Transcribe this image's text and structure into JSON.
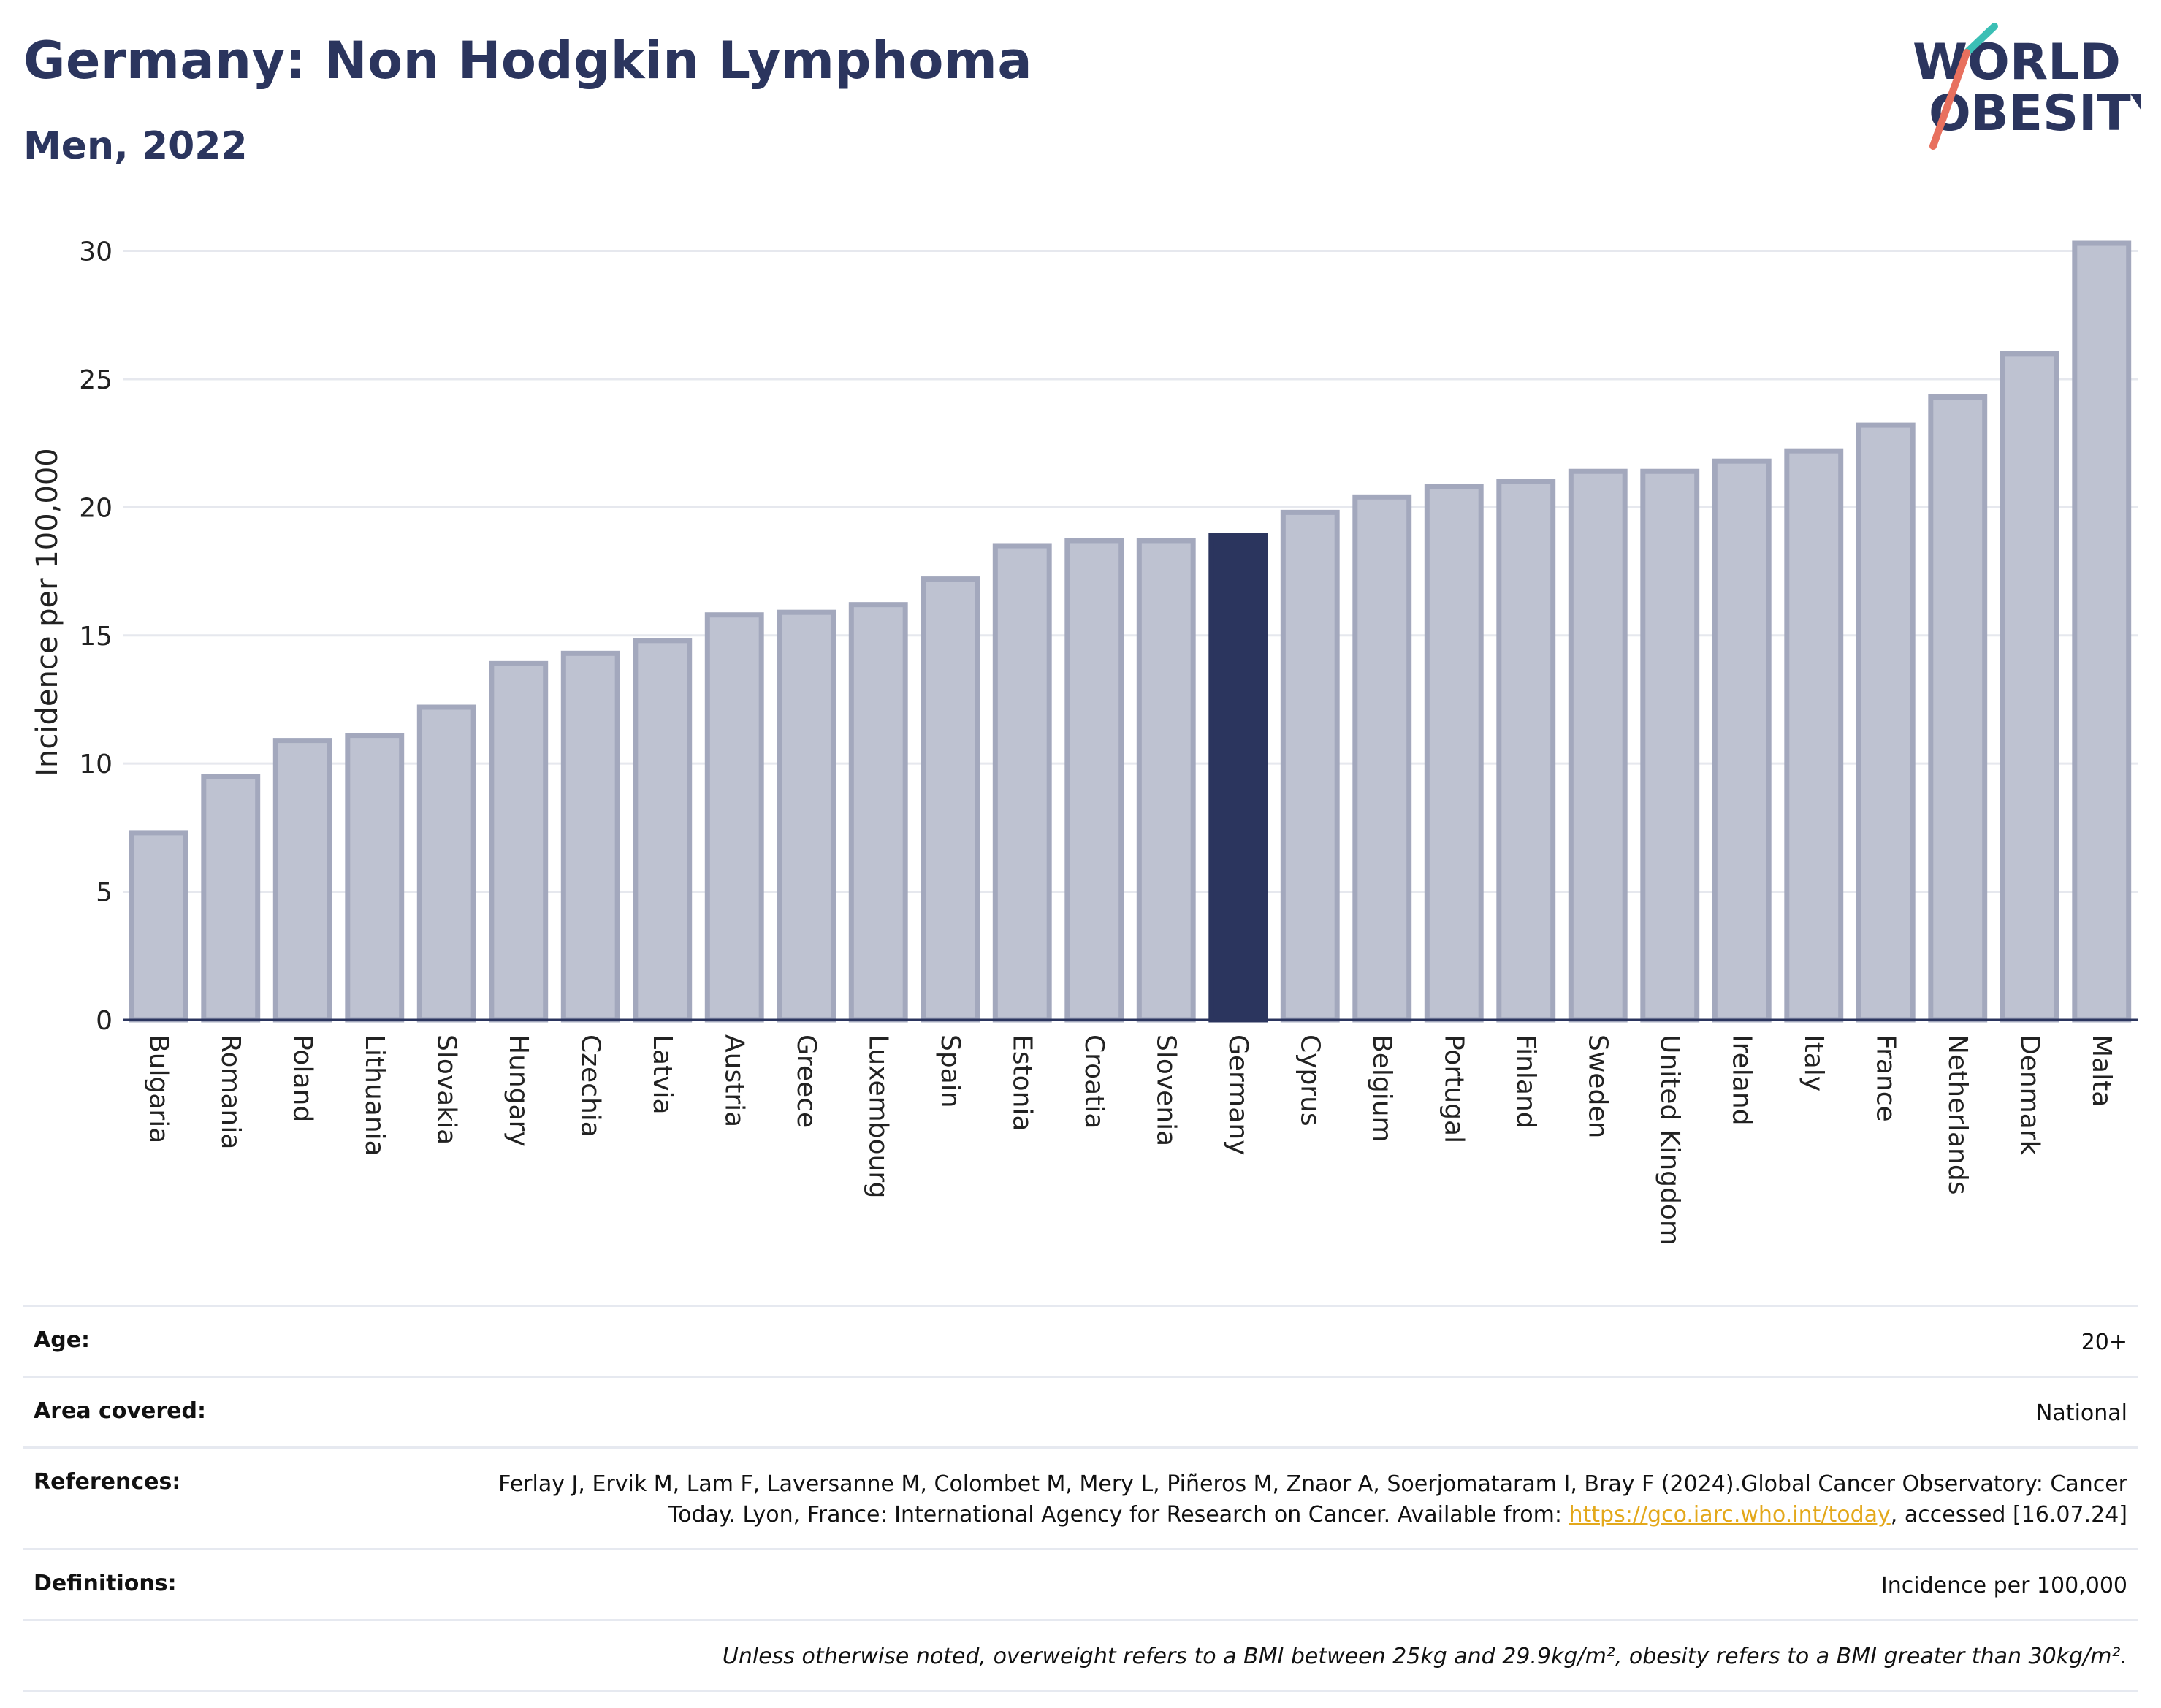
{
  "header": {
    "title": "Germany: Non Hodgkin Lymphoma",
    "subtitle": "Men, 2022",
    "logo": {
      "line1": "WORLD",
      "line2": "OBESITY"
    }
  },
  "colors": {
    "bar": "#bec2d1",
    "bar_border": "#a3a8bd",
    "highlight": "#2b355e",
    "grid": "#e6e8ee",
    "axis": "#2b355e",
    "logo_slash_teal": "#3bbfb5",
    "logo_slash_coral": "#e8705e"
  },
  "chart_data": {
    "type": "bar",
    "highlight": "Germany",
    "categories": [
      "Bulgaria",
      "Romania",
      "Poland",
      "Lithuania",
      "Slovakia",
      "Hungary",
      "Czechia",
      "Latvia",
      "Austria",
      "Greece",
      "Luxembourg",
      "Spain",
      "Estonia",
      "Croatia",
      "Slovenia",
      "Germany",
      "Cyprus",
      "Belgium",
      "Portugal",
      "Finland",
      "Sweden",
      "United Kingdom",
      "Ireland",
      "Italy",
      "France",
      "Netherlands",
      "Denmark",
      "Malta"
    ],
    "values": [
      7.3,
      9.5,
      10.9,
      11.1,
      12.2,
      13.9,
      14.3,
      14.8,
      15.8,
      15.9,
      16.2,
      17.2,
      18.5,
      18.7,
      18.7,
      18.9,
      19.8,
      20.4,
      20.8,
      21.0,
      21.4,
      21.4,
      21.8,
      22.2,
      23.2,
      24.3,
      26.0,
      30.3
    ],
    "ylabel": "Incidence per 100,000",
    "ylim": [
      0,
      30.5
    ],
    "yticks": [
      0,
      5,
      10,
      15,
      20,
      25,
      30
    ],
    "grid": true
  },
  "info": {
    "age_label": "Age:",
    "age_value": "20+",
    "area_label": "Area covered:",
    "area_value": "National",
    "references_label": "References:",
    "references_text_1": "Ferlay J, Ervik M, Lam F, Laversanne M, Colombet M, Mery L, Piñeros M, Znaor A, Soerjomataram I, Bray F (2024).Global Cancer Observatory: Cancer Today. Lyon, France: International Agency for Research on Cancer. Available from: ",
    "references_link": "https://gco.iarc.who.int/today",
    "references_text_2": ", accessed [16.07.24]",
    "definitions_label": "Definitions:",
    "definitions_value": "Incidence per 100,000",
    "note": "Unless otherwise noted, overweight refers to a BMI between 25kg and 29.9kg/m², obesity refers to a BMI greater than 30kg/m²."
  }
}
